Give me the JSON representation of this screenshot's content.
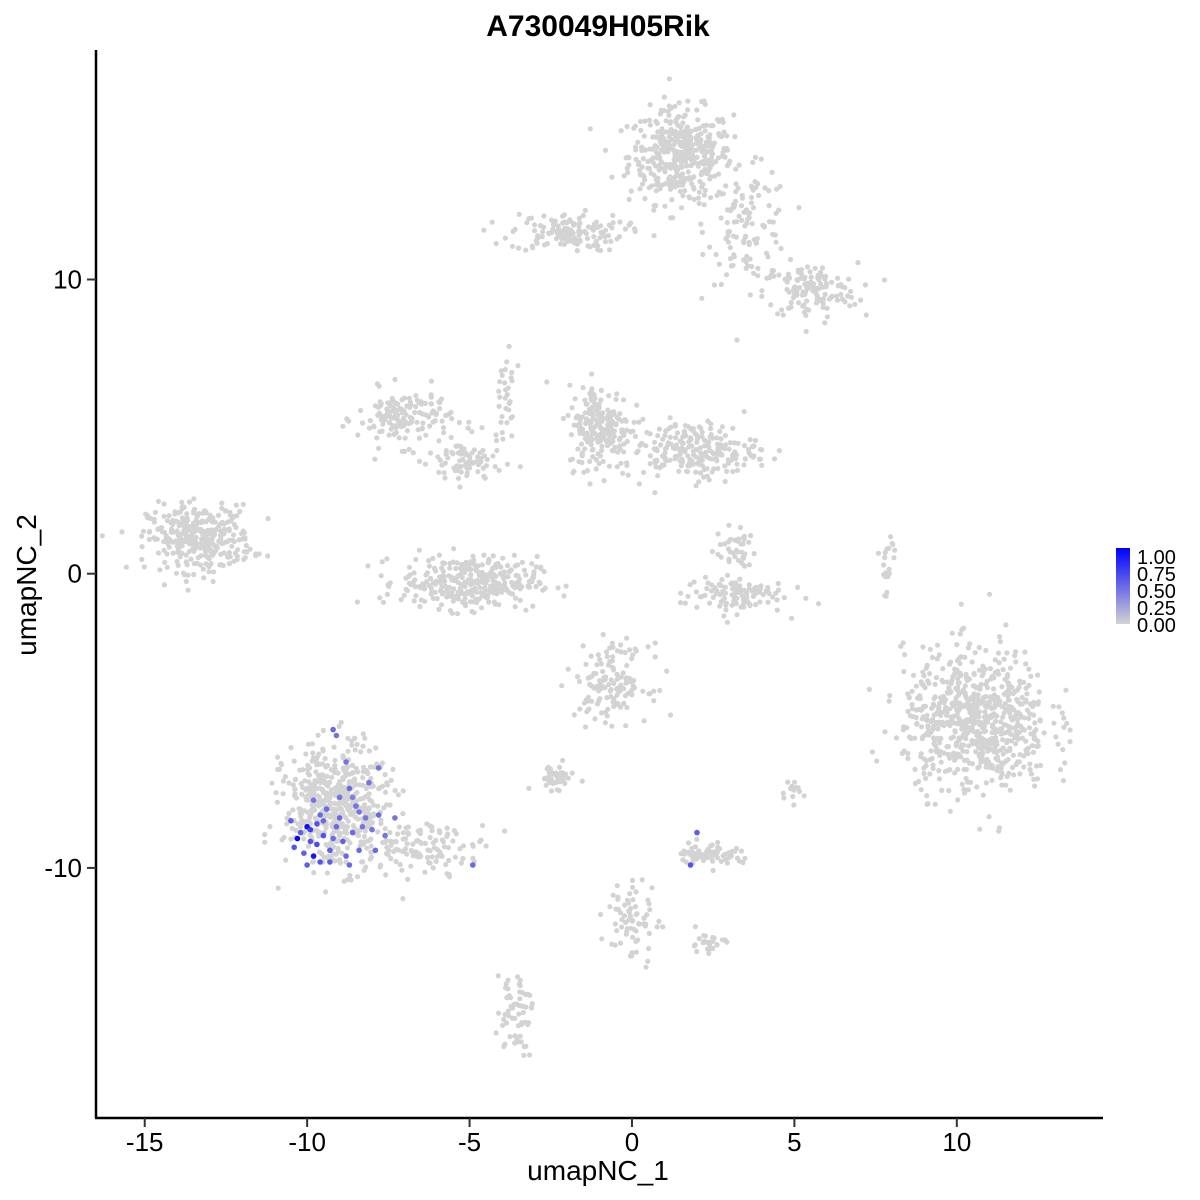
{
  "chart_data": {
    "type": "scatter",
    "title": "A730049H05Rik",
    "xlabel": "umapNC_1",
    "ylabel": "umapNC_2",
    "xlim": [
      -16.5,
      14.5
    ],
    "ylim": [
      -18.5,
      17.8
    ],
    "x_ticks": [
      -15,
      -10,
      -5,
      0,
      5,
      10
    ],
    "x_tick_labels": [
      "-15",
      "-10",
      "-5",
      "0",
      "5",
      "10"
    ],
    "y_ticks": [
      -10,
      0,
      10
    ],
    "y_tick_labels": [
      "-10",
      "0",
      "10"
    ],
    "grid": false,
    "legend_position": "right",
    "color_scale": {
      "low": "#d3d3d3",
      "high": "#0000ff",
      "range": [
        0,
        1
      ],
      "labels": [
        "1.00",
        "0.75",
        "0.50",
        "0.25",
        "0.00"
      ]
    },
    "clusters": [
      {
        "name": "c1",
        "cx": 1.5,
        "cy": 14.2,
        "sx": 1.0,
        "sy": 1.0,
        "n": 420
      },
      {
        "name": "c2",
        "cx": 3.6,
        "cy": 11.8,
        "sx": 0.8,
        "sy": 1.2,
        "n": 110
      },
      {
        "name": "c3",
        "cx": 5.5,
        "cy": 9.6,
        "sx": 0.9,
        "sy": 0.6,
        "n": 130
      },
      {
        "name": "c4",
        "cx": -2.0,
        "cy": 11.6,
        "sx": 1.1,
        "sy": 0.4,
        "n": 140
      },
      {
        "name": "c5",
        "cx": -13.3,
        "cy": 1.2,
        "sx": 1.0,
        "sy": 0.7,
        "n": 330
      },
      {
        "name": "c6",
        "cx": -7.0,
        "cy": 5.3,
        "sx": 0.9,
        "sy": 0.6,
        "n": 150
      },
      {
        "name": "c7",
        "cx": -5.1,
        "cy": 3.8,
        "sx": 0.7,
        "sy": 0.5,
        "n": 80
      },
      {
        "name": "c8",
        "cx": -5.0,
        "cy": -0.3,
        "sx": 1.3,
        "sy": 0.55,
        "n": 340
      },
      {
        "name": "c9",
        "cx": -1.0,
        "cy": 5.0,
        "sx": 0.6,
        "sy": 0.9,
        "n": 200
      },
      {
        "name": "c10",
        "cx": 1.8,
        "cy": 4.2,
        "sx": 1.3,
        "sy": 0.6,
        "n": 230
      },
      {
        "name": "c11",
        "cx": 3.1,
        "cy": -0.7,
        "sx": 1.0,
        "sy": 0.4,
        "n": 110
      },
      {
        "name": "c12",
        "cx": 3.2,
        "cy": 0.8,
        "sx": 0.4,
        "sy": 0.5,
        "n": 40
      },
      {
        "name": "c13",
        "cx": 10.6,
        "cy": -5.0,
        "sx": 1.4,
        "sy": 1.5,
        "n": 720
      },
      {
        "name": "c14",
        "cx": -0.6,
        "cy": -3.7,
        "sx": 0.7,
        "sy": 0.8,
        "n": 140
      },
      {
        "name": "c15",
        "cx": -2.4,
        "cy": -6.9,
        "sx": 0.4,
        "sy": 0.25,
        "n": 45
      },
      {
        "name": "c16",
        "cx": -9.1,
        "cy": -7.9,
        "sx": 1.0,
        "sy": 1.3,
        "n": 520
      },
      {
        "name": "c17",
        "cx": -6.3,
        "cy": -9.3,
        "sx": 1.2,
        "sy": 0.5,
        "n": 110
      },
      {
        "name": "c18",
        "cx": 2.4,
        "cy": -9.5,
        "sx": 0.6,
        "sy": 0.25,
        "n": 70
      },
      {
        "name": "c19",
        "cx": 0.0,
        "cy": -11.8,
        "sx": 0.5,
        "sy": 0.9,
        "n": 70
      },
      {
        "name": "c20",
        "cx": -3.6,
        "cy": -14.8,
        "sx": 0.35,
        "sy": 0.9,
        "n": 60
      },
      {
        "name": "c21",
        "cx": 2.3,
        "cy": -12.6,
        "sx": 0.35,
        "sy": 0.25,
        "n": 25
      },
      {
        "name": "c22",
        "cx": 7.9,
        "cy": 0.4,
        "sx": 0.2,
        "sy": 0.7,
        "n": 20
      },
      {
        "name": "c23",
        "cx": -3.9,
        "cy": 6.0,
        "sx": 0.2,
        "sy": 1.0,
        "n": 30
      },
      {
        "name": "c24",
        "cx": 4.9,
        "cy": -7.3,
        "sx": 0.25,
        "sy": 0.3,
        "n": 15
      }
    ],
    "expressing_cells": [
      {
        "x": -10.0,
        "y": -8.6,
        "v": 0.95
      },
      {
        "x": -10.3,
        "y": -9.0,
        "v": 1.0
      },
      {
        "x": -9.8,
        "y": -9.6,
        "v": 0.9
      },
      {
        "x": -9.9,
        "y": -8.7,
        "v": 0.7
      },
      {
        "x": -9.7,
        "y": -9.2,
        "v": 0.65
      },
      {
        "x": -9.5,
        "y": -8.9,
        "v": 0.6
      },
      {
        "x": -10.4,
        "y": -9.3,
        "v": 0.6
      },
      {
        "x": -10.1,
        "y": -9.5,
        "v": 0.55
      },
      {
        "x": -9.6,
        "y": -9.8,
        "v": 0.6
      },
      {
        "x": -9.3,
        "y": -9.4,
        "v": 0.55
      },
      {
        "x": -9.1,
        "y": -8.6,
        "v": 0.5
      },
      {
        "x": -8.9,
        "y": -9.1,
        "v": 0.55
      },
      {
        "x": -8.6,
        "y": -8.8,
        "v": 0.5
      },
      {
        "x": -8.4,
        "y": -9.4,
        "v": 0.5
      },
      {
        "x": -8.2,
        "y": -8.3,
        "v": 0.45
      },
      {
        "x": -9.4,
        "y": -8.0,
        "v": 0.5
      },
      {
        "x": -9.0,
        "y": -7.6,
        "v": 0.45
      },
      {
        "x": -8.7,
        "y": -7.3,
        "v": 0.5
      },
      {
        "x": -8.5,
        "y": -7.9,
        "v": 0.45
      },
      {
        "x": -8.1,
        "y": -7.1,
        "v": 0.45
      },
      {
        "x": -7.8,
        "y": -8.2,
        "v": 0.5
      },
      {
        "x": -7.6,
        "y": -8.9,
        "v": 0.45
      },
      {
        "x": -7.3,
        "y": -8.3,
        "v": 0.45
      },
      {
        "x": -7.9,
        "y": -9.4,
        "v": 0.5
      },
      {
        "x": -9.2,
        "y": -5.3,
        "v": 0.5
      },
      {
        "x": -9.1,
        "y": -5.5,
        "v": 0.45
      },
      {
        "x": -8.8,
        "y": -6.4,
        "v": 0.45
      },
      {
        "x": -7.8,
        "y": -6.6,
        "v": 0.45
      },
      {
        "x": -8.6,
        "y": -7.6,
        "v": 0.4
      },
      {
        "x": -9.8,
        "y": -7.7,
        "v": 0.45
      },
      {
        "x": -9.6,
        "y": -8.2,
        "v": 0.5
      },
      {
        "x": -10.2,
        "y": -8.8,
        "v": 0.55
      },
      {
        "x": -9.3,
        "y": -9.8,
        "v": 0.55
      },
      {
        "x": -8.8,
        "y": -9.6,
        "v": 0.5
      },
      {
        "x": -9.9,
        "y": -9.1,
        "v": 0.6
      },
      {
        "x": -10.0,
        "y": -9.9,
        "v": 0.55
      },
      {
        "x": -9.5,
        "y": -8.4,
        "v": 0.5
      },
      {
        "x": -8.3,
        "y": -8.6,
        "v": 0.45
      },
      {
        "x": -9.0,
        "y": -8.3,
        "v": 0.5
      },
      {
        "x": -8.0,
        "y": -8.7,
        "v": 0.45
      },
      {
        "x": -10.5,
        "y": -8.4,
        "v": 0.55
      },
      {
        "x": -9.7,
        "y": -8.5,
        "v": 0.6
      },
      {
        "x": -4.9,
        "y": -9.9,
        "v": 0.5
      },
      {
        "x": 2.0,
        "y": -8.8,
        "v": 0.55
      },
      {
        "x": 1.8,
        "y": -9.9,
        "v": 0.6
      },
      {
        "x": -8.7,
        "y": -9.9,
        "v": 0.5
      },
      {
        "x": -9.2,
        "y": -9.0,
        "v": 0.5
      },
      {
        "x": -8.4,
        "y": -8.1,
        "v": 0.45
      }
    ]
  }
}
